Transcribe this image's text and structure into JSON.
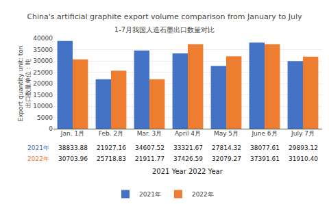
{
  "chart_data": {
    "type": "bar",
    "title": "China's artificial graphite export volume comparison from January to July",
    "subtitle": "1-7月我国人造石墨出口数量对比",
    "ylabel": "Export quantity unit: ton\n出口数量单位：吨",
    "xlabel": "2021 Year 2022 Year",
    "categories": [
      "Jan. 1月",
      "Feb. 2月",
      "Mar. 3月",
      "April 4月",
      "May 5月",
      "June 6月",
      "July 7月"
    ],
    "series": [
      {
        "name": "2021年",
        "color": "#4472C4",
        "values": [
          38833.88,
          21927.16,
          34607.52,
          33321.67,
          27814.32,
          38077.61,
          29893.12
        ],
        "value_labels": [
          "38833.88",
          "21927.16",
          "34607.52",
          "33321.67",
          "27814.32",
          "38077.61",
          "29893.12"
        ]
      },
      {
        "name": "2022年",
        "color": "#ED7D31",
        "values": [
          30703.96,
          25718.83,
          21911.77,
          37426.59,
          32079.27,
          37391.61,
          31910.4
        ],
        "value_labels": [
          "30703.96",
          "25718.83",
          "21911.77",
          "37426.59",
          "32079.27",
          "37391.61",
          "31910.40"
        ]
      }
    ],
    "ylim": [
      0,
      40000
    ],
    "yticks": [
      0,
      5000,
      10000,
      15000,
      20000,
      25000,
      30000,
      35000,
      40000
    ],
    "grid": true,
    "legend": "bottom"
  }
}
